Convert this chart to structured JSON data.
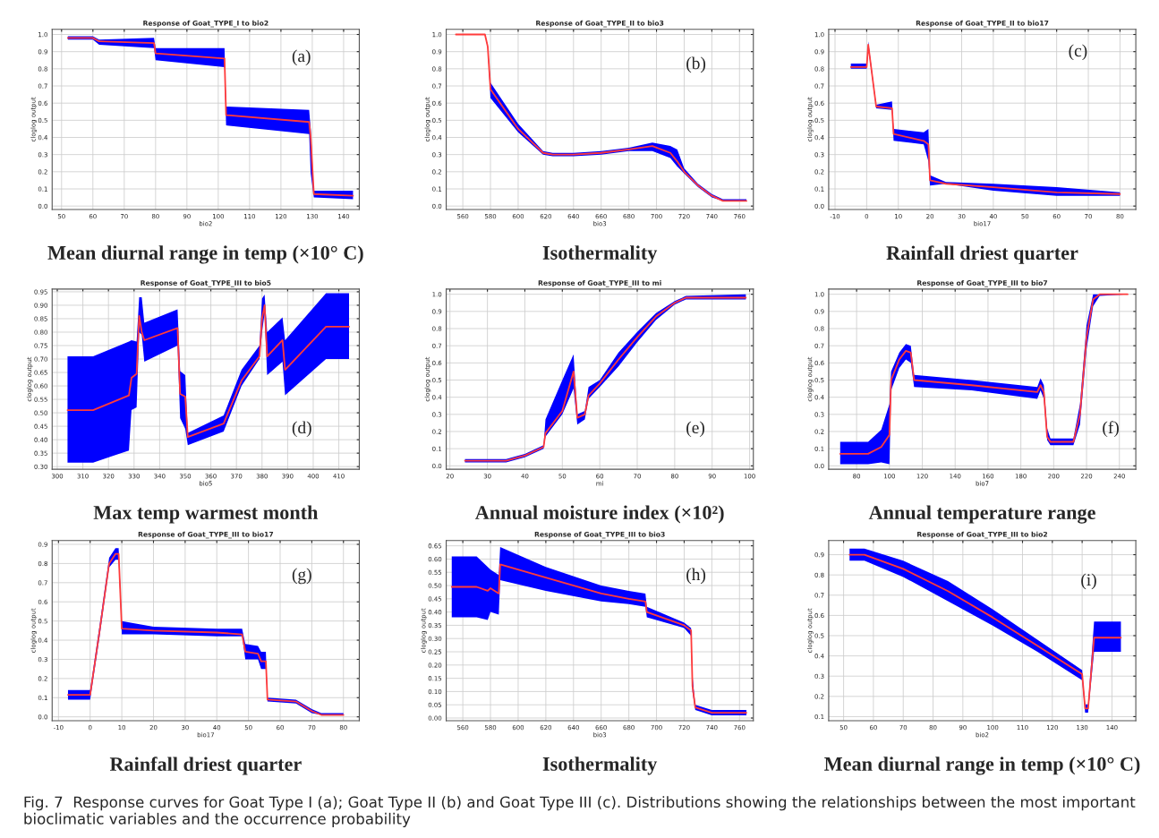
{
  "chart_data": [
    {
      "type": "line",
      "title": "Response of Goat_TYPE_I to bio2",
      "xlabel": "bio2",
      "ylabel": "cloglog output",
      "grid": true,
      "annotations": [
        "(a)",
        "Mean diurnal range in temp (×10° C)"
      ],
      "xlim": [
        47,
        145
      ],
      "xticks": [
        50,
        60,
        70,
        80,
        90,
        100,
        110,
        120,
        130,
        140
      ],
      "ylim": [
        -0.02,
        1.03
      ],
      "yticks": [
        {
          "value": 0,
          "label": "0.0"
        },
        0.1,
        0.2,
        0.3,
        0.4,
        0.5,
        0.6,
        0.7,
        0.8,
        0.9,
        {
          "value": 1,
          "label": "1.0"
        }
      ],
      "x": [
        52,
        60,
        62,
        79.5,
        80,
        102,
        102.5,
        129,
        129.5,
        130.5,
        143
      ],
      "colors": [
        "#0000ff"
      ],
      "series": [
        {
          "color": "#ff3b3b",
          "values": [
            0.98,
            0.98,
            0.96,
            0.95,
            0.89,
            0.86,
            0.53,
            0.49,
            0.4,
            0.07,
            0.06
          ],
          "lower": [
            0.97,
            0.97,
            0.94,
            0.92,
            0.85,
            0.81,
            0.47,
            0.42,
            0.19,
            0.05,
            0.04
          ],
          "upper": [
            0.99,
            0.99,
            0.97,
            0.98,
            0.92,
            0.92,
            0.58,
            0.56,
            0.45,
            0.09,
            0.09
          ]
        }
      ]
    },
    {
      "type": "line",
      "title": "Response of Goat_TYPE_II to bio3",
      "xlabel": "bio3",
      "ylabel": "cloglog output",
      "grid": true,
      "annotations": [
        "(b)",
        "Isothermality"
      ],
      "xlim": [
        548,
        770
      ],
      "xticks": [
        560,
        580,
        600,
        620,
        640,
        660,
        680,
        700,
        720,
        740,
        760
      ],
      "ylim": [
        -0.02,
        1.03
      ],
      "yticks": [
        {
          "value": 0,
          "label": "0.0"
        },
        0.1,
        0.2,
        0.3,
        0.4,
        0.5,
        0.6,
        0.7,
        0.8,
        0.9,
        {
          "value": 1,
          "label": "1.0"
        }
      ],
      "x": [
        555,
        576,
        578,
        580,
        600,
        618,
        625,
        640,
        660,
        680,
        697,
        710,
        715,
        720,
        730,
        740,
        748,
        765
      ],
      "colors": [
        "#0000ff"
      ],
      "series": [
        {
          "color": "#ff3b3b",
          "values": [
            1.0,
            1.0,
            0.93,
            0.68,
            0.45,
            0.31,
            0.3,
            0.3,
            0.31,
            0.33,
            0.35,
            0.31,
            0.26,
            0.2,
            0.12,
            0.06,
            0.03,
            0.03
          ],
          "lower": [
            1.0,
            1.0,
            0.92,
            0.63,
            0.43,
            0.3,
            0.29,
            0.29,
            0.3,
            0.32,
            0.32,
            0.28,
            0.23,
            0.19,
            0.11,
            0.05,
            0.03,
            0.03
          ],
          "upper": [
            1.0,
            1.0,
            0.94,
            0.72,
            0.48,
            0.32,
            0.31,
            0.31,
            0.32,
            0.34,
            0.37,
            0.35,
            0.33,
            0.22,
            0.13,
            0.07,
            0.04,
            0.04
          ]
        }
      ]
    },
    {
      "type": "line",
      "title": "Response of Goat_TYPE_II to bio17",
      "xlabel": "bio17",
      "ylabel": "cloglog output",
      "grid": true,
      "annotations": [
        "(c)",
        "Rainfall driest quarter"
      ],
      "xlim": [
        -12,
        85
      ],
      "xticks": [
        -10,
        0,
        10,
        20,
        30,
        40,
        50,
        60,
        70,
        80
      ],
      "ylim": [
        -0.02,
        1.03
      ],
      "yticks": [
        {
          "value": 0,
          "label": "0.0"
        },
        0.1,
        0.2,
        0.3,
        0.4,
        0.5,
        0.6,
        0.7,
        0.8,
        0.9,
        {
          "value": 1,
          "label": "1.0"
        }
      ],
      "x": [
        -5,
        0,
        0.5,
        3,
        8,
        8.5,
        18,
        19.5,
        20,
        25,
        40,
        60,
        80
      ],
      "colors": [
        "#0000ff"
      ],
      "series": [
        {
          "color": "#ff3b3b",
          "values": [
            0.81,
            0.81,
            0.94,
            0.58,
            0.57,
            0.42,
            0.38,
            0.36,
            0.15,
            0.13,
            0.11,
            0.08,
            0.07
          ],
          "lower": [
            0.8,
            0.8,
            0.92,
            0.57,
            0.56,
            0.38,
            0.36,
            0.26,
            0.12,
            0.13,
            0.09,
            0.06,
            0.06
          ],
          "upper": [
            0.83,
            0.83,
            0.96,
            0.59,
            0.61,
            0.45,
            0.43,
            0.45,
            0.18,
            0.14,
            0.13,
            0.11,
            0.08
          ]
        }
      ]
    },
    {
      "type": "line",
      "title": "Response of Goat_TYPE_III to bio5",
      "xlabel": "bio5",
      "ylabel": "cloglog output",
      "grid": true,
      "annotations": [
        "(d)",
        "Max temp warmest month"
      ],
      "xlim": [
        298,
        418
      ],
      "xticks": [
        300,
        310,
        320,
        330,
        340,
        350,
        360,
        370,
        380,
        390,
        400,
        410
      ],
      "ylim": [
        0.29,
        0.96
      ],
      "yticks": [
        {
          "value": 0.3,
          "label": "0.30"
        },
        {
          "value": 0.35,
          "label": "0.35"
        },
        {
          "value": 0.4,
          "label": "0.40"
        },
        {
          "value": 0.45,
          "label": "0.45"
        },
        {
          "value": 0.5,
          "label": "0.50"
        },
        {
          "value": 0.55,
          "label": "0.55"
        },
        {
          "value": 0.6,
          "label": "0.60"
        },
        {
          "value": 0.65,
          "label": "0.65"
        },
        {
          "value": 0.7,
          "label": "0.70"
        },
        {
          "value": 0.75,
          "label": "0.75"
        },
        {
          "value": 0.8,
          "label": "0.80"
        },
        {
          "value": 0.85,
          "label": "0.85"
        },
        {
          "value": 0.9,
          "label": "0.90"
        },
        {
          "value": 0.95,
          "label": "0.95"
        }
      ],
      "x": [
        304,
        314,
        328,
        329,
        331,
        332,
        333,
        334,
        347,
        348,
        350,
        351,
        365,
        372,
        379,
        380,
        381,
        382,
        388,
        389,
        405,
        414
      ],
      "colors": [
        "#0000ff"
      ],
      "series": [
        {
          "color": "#ff3b3b",
          "values": [
            0.51,
            0.51,
            0.565,
            0.63,
            0.645,
            0.86,
            0.8,
            0.77,
            0.815,
            0.57,
            0.56,
            0.41,
            0.46,
            0.62,
            0.71,
            0.85,
            0.9,
            0.71,
            0.77,
            0.66,
            0.82,
            0.82
          ],
          "lower": [
            0.315,
            0.315,
            0.36,
            0.51,
            0.52,
            0.8,
            0.79,
            0.69,
            0.75,
            0.48,
            0.44,
            0.38,
            0.43,
            0.6,
            0.7,
            0.8,
            0.87,
            0.64,
            0.69,
            0.565,
            0.7,
            0.7
          ],
          "upper": [
            0.71,
            0.71,
            0.765,
            0.77,
            0.765,
            0.93,
            0.93,
            0.835,
            0.885,
            0.655,
            0.64,
            0.425,
            0.49,
            0.66,
            0.75,
            0.925,
            0.94,
            0.8,
            0.855,
            0.77,
            0.945,
            0.945
          ]
        }
      ]
    },
    {
      "type": "line",
      "title": "Response of Goat_TYPE_III to mi",
      "xlabel": "mi",
      "ylabel": "cloglog output",
      "grid": true,
      "annotations": [
        "(e)",
        "Annual moisture index (×10²)"
      ],
      "xlim": [
        19,
        101
      ],
      "xticks": [
        20,
        30,
        40,
        50,
        60,
        70,
        80,
        90,
        100
      ],
      "ylim": [
        -0.02,
        1.03
      ],
      "yticks": [
        {
          "value": 0,
          "label": "0.0"
        },
        0.1,
        0.2,
        0.3,
        0.4,
        0.5,
        0.6,
        0.7,
        0.8,
        0.9,
        {
          "value": 1,
          "label": "1.0"
        }
      ],
      "x": [
        24,
        35,
        40,
        45,
        45.5,
        50,
        53,
        54,
        56,
        57,
        60,
        65,
        70,
        75,
        80,
        83,
        99
      ],
      "colors": [
        "#0000ff"
      ],
      "series": [
        {
          "color": "#ff3b3b",
          "values": [
            0.03,
            0.03,
            0.06,
            0.11,
            0.19,
            0.32,
            0.55,
            0.28,
            0.3,
            0.41,
            0.48,
            0.62,
            0.75,
            0.87,
            0.95,
            0.98,
            0.98
          ],
          "lower": [
            0.02,
            0.02,
            0.05,
            0.1,
            0.17,
            0.3,
            0.45,
            0.24,
            0.27,
            0.39,
            0.46,
            0.58,
            0.72,
            0.85,
            0.94,
            0.97,
            0.97
          ],
          "upper": [
            0.04,
            0.04,
            0.07,
            0.12,
            0.27,
            0.5,
            0.65,
            0.3,
            0.32,
            0.46,
            0.5,
            0.66,
            0.78,
            0.89,
            0.96,
            0.99,
            1.0
          ]
        }
      ]
    },
    {
      "type": "line",
      "title": "Response of Goat_TYPE_III to bio7",
      "xlabel": "bio7",
      "ylabel": "cloglog output",
      "grid": true,
      "annotations": [
        "(f)",
        "Annual temperature range"
      ],
      "xlim": [
        63,
        250
      ],
      "xticks": [
        80,
        100,
        120,
        140,
        160,
        180,
        200,
        220,
        240
      ],
      "ylim": [
        -0.02,
        1.03
      ],
      "yticks": [
        {
          "value": 0,
          "label": "0.0"
        },
        0.1,
        0.2,
        0.3,
        0.4,
        0.5,
        0.6,
        0.7,
        0.8,
        0.9,
        {
          "value": 1,
          "label": "1.0"
        }
      ],
      "x": [
        70,
        87,
        95,
        100,
        101,
        106,
        110,
        113,
        115,
        150,
        190,
        192,
        194,
        196,
        198,
        212,
        216,
        220,
        224,
        228,
        245
      ],
      "colors": [
        "#0000ff"
      ],
      "series": [
        {
          "color": "#ff3b3b",
          "values": [
            0.07,
            0.07,
            0.11,
            0.18,
            0.5,
            0.62,
            0.67,
            0.66,
            0.5,
            0.47,
            0.43,
            0.47,
            0.43,
            0.17,
            0.14,
            0.14,
            0.3,
            0.75,
            0.97,
            1.0,
            1.0
          ],
          "lower": [
            0.01,
            0.01,
            0.02,
            0.01,
            0.44,
            0.57,
            0.62,
            0.6,
            0.46,
            0.44,
            0.39,
            0.44,
            0.39,
            0.15,
            0.12,
            0.12,
            0.24,
            0.68,
            0.93,
            0.99,
            1.0
          ],
          "upper": [
            0.14,
            0.14,
            0.21,
            0.36,
            0.55,
            0.66,
            0.71,
            0.7,
            0.53,
            0.5,
            0.46,
            0.51,
            0.47,
            0.22,
            0.16,
            0.16,
            0.36,
            0.82,
            1.0,
            1.0,
            1.0
          ]
        }
      ]
    },
    {
      "type": "line",
      "title": "Response of Goat_TYPE_III to bio17",
      "xlabel": "bio17",
      "ylabel": "cloglog output",
      "grid": true,
      "annotations": [
        "(g)",
        "Rainfall driest quarter"
      ],
      "xlim": [
        -12,
        85
      ],
      "xticks": [
        -10,
        0,
        10,
        20,
        30,
        40,
        50,
        60,
        70,
        80
      ],
      "ylim": [
        -0.02,
        0.92
      ],
      "yticks": [
        {
          "value": 0,
          "label": "0.0"
        },
        0.1,
        0.2,
        0.3,
        0.4,
        0.5,
        0.6,
        0.7,
        0.8,
        0.9
      ],
      "x": [
        -7,
        0,
        3,
        6,
        8,
        9,
        10,
        20,
        40,
        48,
        49,
        53,
        54,
        55.5,
        56,
        65,
        70,
        73,
        80
      ],
      "colors": [
        "#0000ff"
      ],
      "series": [
        {
          "color": "#ff3b3b",
          "values": [
            0.115,
            0.115,
            0.45,
            0.8,
            0.85,
            0.85,
            0.46,
            0.45,
            0.44,
            0.43,
            0.34,
            0.33,
            0.29,
            0.29,
            0.09,
            0.08,
            0.03,
            0.01,
            0.01
          ],
          "lower": [
            0.09,
            0.09,
            0.42,
            0.78,
            0.82,
            0.82,
            0.43,
            0.43,
            0.42,
            0.42,
            0.3,
            0.3,
            0.25,
            0.25,
            0.08,
            0.07,
            0.02,
            0.01,
            0.01
          ],
          "upper": [
            0.14,
            0.14,
            0.48,
            0.83,
            0.88,
            0.88,
            0.5,
            0.47,
            0.46,
            0.46,
            0.38,
            0.37,
            0.34,
            0.34,
            0.1,
            0.09,
            0.04,
            0.02,
            0.02
          ]
        }
      ]
    },
    {
      "type": "line",
      "title": "Response of Goat_TYPE_III to bio3",
      "xlabel": "bio3",
      "ylabel": "cloglog output",
      "grid": true,
      "annotations": [
        "(h)",
        "Isothermality"
      ],
      "xlim": [
        548,
        770
      ],
      "xticks": [
        560,
        580,
        600,
        620,
        640,
        660,
        680,
        700,
        720,
        740,
        760
      ],
      "ylim": [
        -0.01,
        0.67
      ],
      "yticks": [
        {
          "value": 0,
          "label": "0.00"
        },
        {
          "value": 0.05,
          "label": "0.05"
        },
        {
          "value": 0.1,
          "label": "0.10"
        },
        {
          "value": 0.15,
          "label": "0.15"
        },
        {
          "value": 0.2,
          "label": "0.20"
        },
        {
          "value": 0.25,
          "label": "0.25"
        },
        {
          "value": 0.3,
          "label": "0.30"
        },
        {
          "value": 0.35,
          "label": "0.35"
        },
        {
          "value": 0.4,
          "label": "0.40"
        },
        {
          "value": 0.45,
          "label": "0.45"
        },
        {
          "value": 0.5,
          "label": "0.50"
        },
        {
          "value": 0.55,
          "label": "0.55"
        },
        {
          "value": 0.6,
          "label": "0.60"
        },
        {
          "value": 0.65,
          "label": "0.65"
        }
      ],
      "x": [
        552,
        570,
        578,
        580,
        586,
        587,
        620,
        660,
        680,
        692,
        693,
        720,
        725,
        726,
        728,
        740,
        765
      ],
      "colors": [
        "#0000ff"
      ],
      "series": [
        {
          "color": "#ff3b3b",
          "values": [
            0.495,
            0.495,
            0.48,
            0.49,
            0.47,
            0.58,
            0.53,
            0.47,
            0.45,
            0.44,
            0.4,
            0.35,
            0.33,
            0.12,
            0.04,
            0.02,
            0.02
          ],
          "lower": [
            0.38,
            0.38,
            0.37,
            0.4,
            0.39,
            0.52,
            0.48,
            0.44,
            0.43,
            0.42,
            0.38,
            0.34,
            0.31,
            0.1,
            0.03,
            0.01,
            0.01
          ],
          "upper": [
            0.61,
            0.61,
            0.57,
            0.56,
            0.54,
            0.645,
            0.57,
            0.5,
            0.48,
            0.47,
            0.42,
            0.36,
            0.34,
            0.16,
            0.05,
            0.03,
            0.03
          ]
        }
      ]
    },
    {
      "type": "line",
      "title": "Response of Goat_TYPE_III to bio2",
      "xlabel": "bio2",
      "ylabel": "cloglog output",
      "grid": true,
      "annotations": [
        "(i)",
        "Mean diurnal range in temp (×10° C)",
        "Fig. 7  Response curves for Goat Type I (a); Goat Type II (b) and Goat Type III (c). Distributions showing the relationships between the most important bioclimatic variables and the occurrence probability"
      ],
      "xlim": [
        45,
        148
      ],
      "xticks": [
        50,
        60,
        70,
        80,
        90,
        100,
        110,
        120,
        130,
        140
      ],
      "ylim": [
        0.08,
        0.97
      ],
      "yticks": [
        0.1,
        0.2,
        0.3,
        0.4,
        0.5,
        0.6,
        0.7,
        0.8,
        0.9
      ],
      "x": [
        52,
        57,
        70,
        85,
        100,
        115,
        130,
        131,
        132,
        134,
        143
      ],
      "colors": [
        "#0000ff"
      ],
      "series": [
        {
          "color": "#ff3b3b",
          "values": [
            0.9,
            0.9,
            0.83,
            0.72,
            0.59,
            0.45,
            0.31,
            0.14,
            0.14,
            0.49,
            0.49
          ],
          "lower": [
            0.87,
            0.87,
            0.79,
            0.67,
            0.55,
            0.42,
            0.28,
            0.12,
            0.12,
            0.42,
            0.42
          ],
          "upper": [
            0.93,
            0.93,
            0.87,
            0.77,
            0.63,
            0.48,
            0.33,
            0.16,
            0.16,
            0.57,
            0.57
          ]
        }
      ]
    }
  ]
}
